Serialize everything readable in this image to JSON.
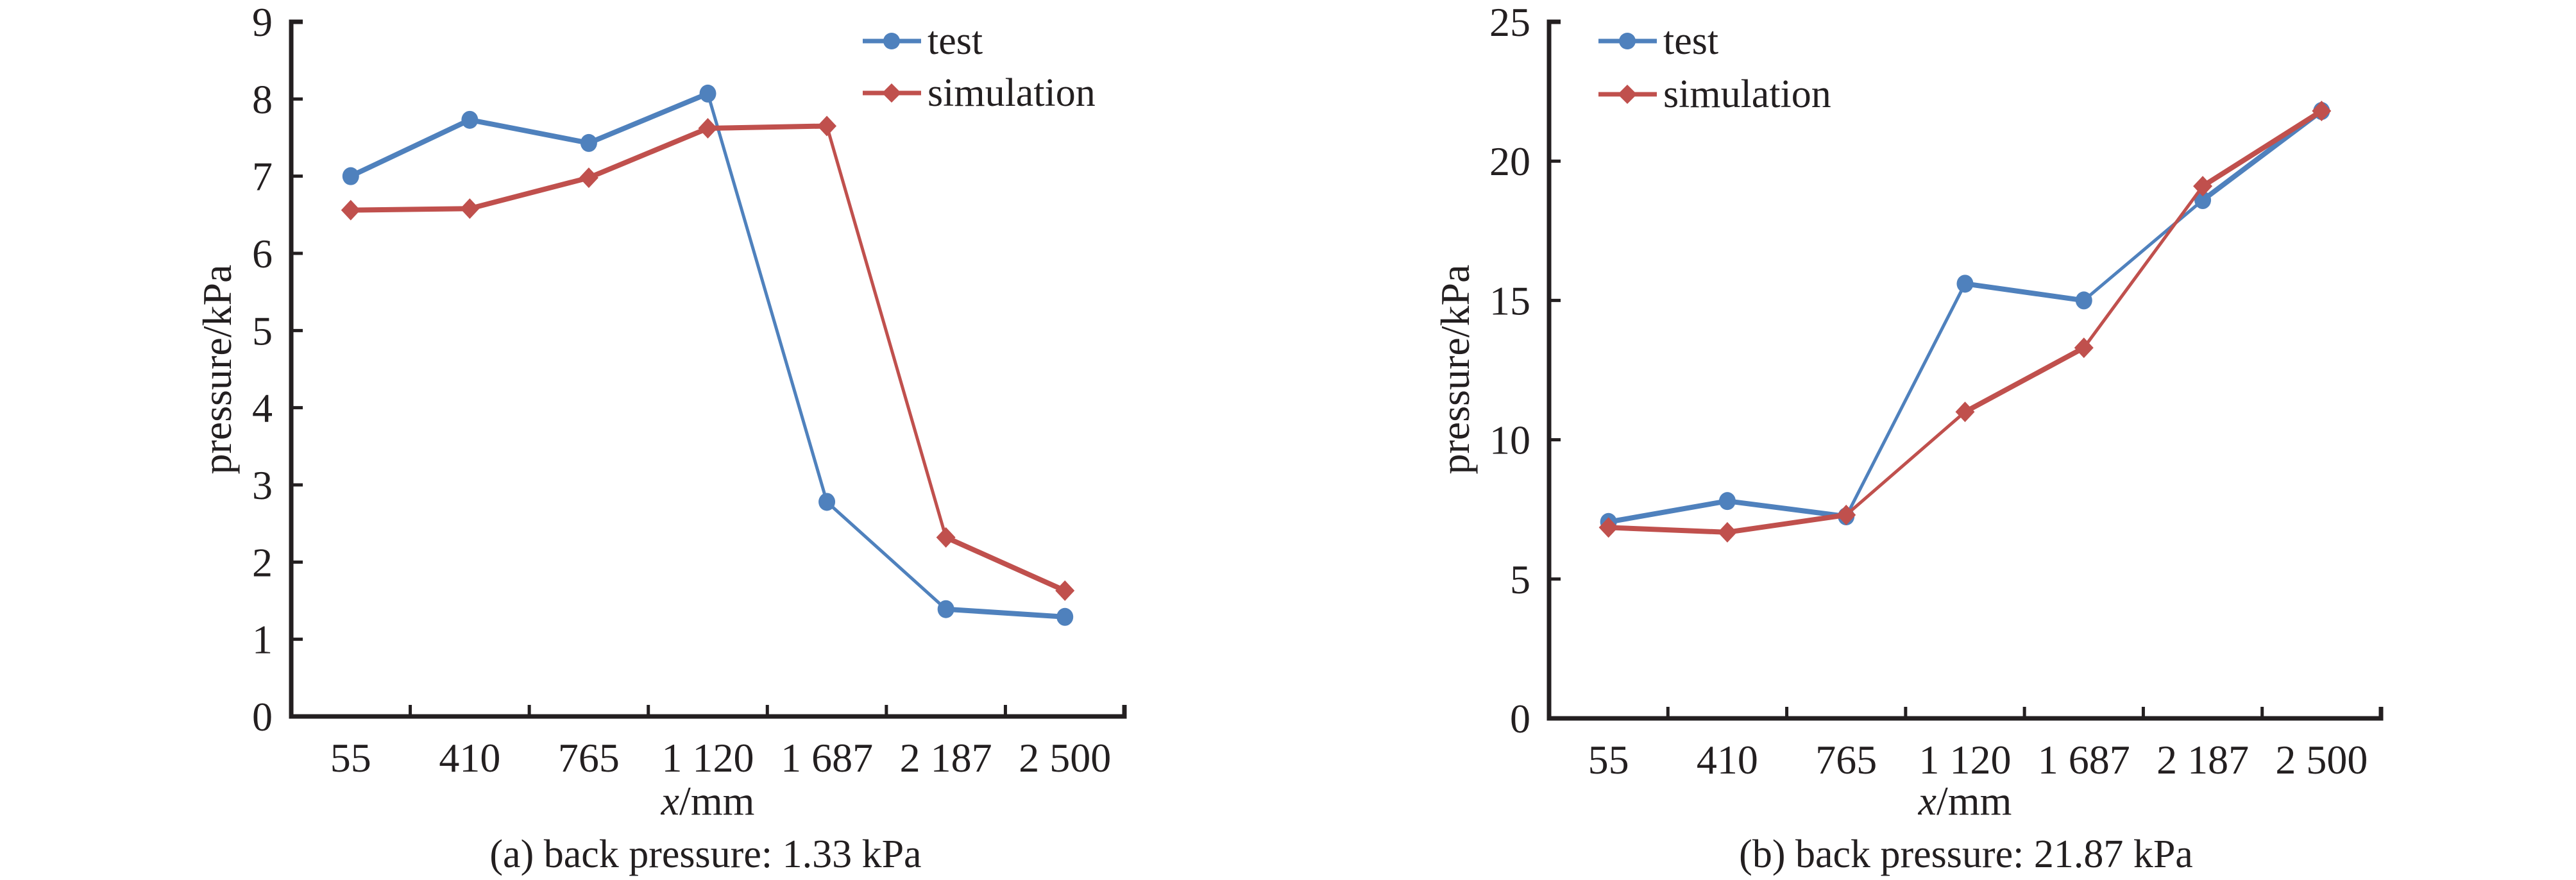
{
  "colors": {
    "test": "#4f81bd",
    "simulation": "#c0504d",
    "axis": "#231f20"
  },
  "chart_data": [
    {
      "type": "line",
      "id": "a",
      "caption": "(a) back pressure: 1.33 kPa",
      "xlabel_italic": "x",
      "xlabel_unit": "/mm",
      "ylabel": "pressure/kPa",
      "categories": [
        "55",
        "410",
        "765",
        "1 120",
        "1 687",
        "2 187",
        "2 500"
      ],
      "ylim": [
        0,
        9
      ],
      "yticks": [
        "0",
        "1",
        "2",
        "3",
        "4",
        "5",
        "6",
        "7",
        "8",
        "9"
      ],
      "ytick_values": [
        0,
        1,
        2,
        3,
        4,
        5,
        6,
        7,
        8,
        9
      ],
      "grid": false,
      "legend_position": "top-right",
      "series": [
        {
          "name": "test",
          "marker": "circle",
          "values": [
            7.0,
            7.73,
            7.43,
            8.07,
            2.78,
            1.39,
            1.29
          ]
        },
        {
          "name": "simulation",
          "marker": "diamond",
          "values": [
            6.56,
            6.58,
            6.98,
            7.62,
            7.65,
            2.32,
            1.63
          ]
        }
      ]
    },
    {
      "type": "line",
      "id": "b",
      "caption": "(b) back pressure: 21.87 kPa",
      "xlabel_italic": "x",
      "xlabel_unit": "/mm",
      "ylabel": "pressure/kPa",
      "categories": [
        "55",
        "410",
        "765",
        "1 120",
        "1 687",
        "2 187",
        "2 500"
      ],
      "ylim": [
        0,
        25
      ],
      "yticks": [
        "0",
        "5",
        "10",
        "15",
        "20",
        "25"
      ],
      "ytick_values": [
        0,
        5,
        10,
        15,
        20,
        25
      ],
      "grid": false,
      "legend_position": "top-left",
      "series": [
        {
          "name": "test",
          "marker": "circle",
          "values": [
            7.05,
            7.8,
            7.25,
            15.6,
            15.0,
            18.6,
            21.8
          ]
        },
        {
          "name": "simulation",
          "marker": "diamond",
          "values": [
            6.85,
            6.68,
            7.3,
            11.0,
            13.3,
            19.1,
            21.8
          ]
        }
      ]
    }
  ]
}
